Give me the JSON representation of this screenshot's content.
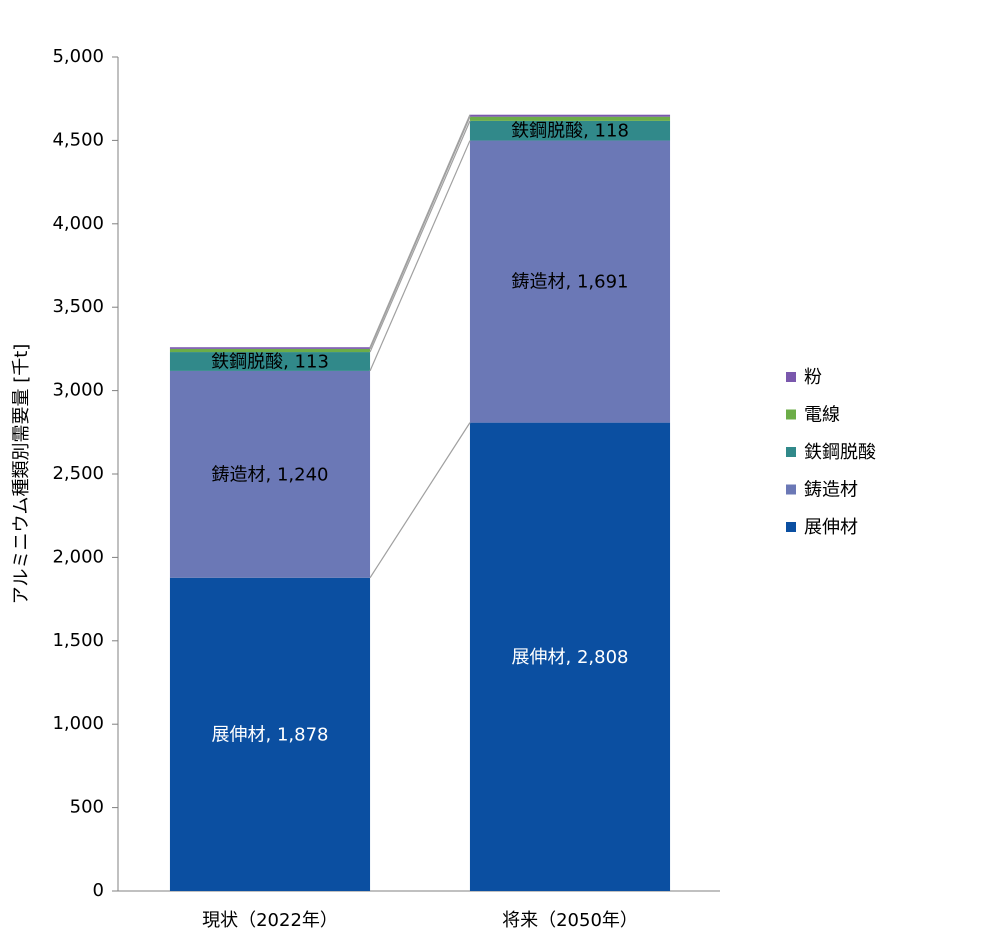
{
  "chart_data": {
    "type": "stacked_bar",
    "y_label": "アルミニウム種類別需要量 [千t]",
    "categories": [
      "現状（2022年）",
      "将来（2050年）"
    ],
    "series": [
      {
        "name": "展伸材",
        "color": "#0b4fa1",
        "label_color": "#ffffff",
        "values": [
          1878,
          2808
        ],
        "value_labels": [
          "展伸材, 1,878",
          "展伸材, 2,808"
        ]
      },
      {
        "name": "鋳造材",
        "color": "#6b78b6",
        "label_color": "#000000",
        "values": [
          1240,
          1691
        ],
        "value_labels": [
          "鋳造材, 1,240",
          "鋳造材, 1,691"
        ]
      },
      {
        "name": "鉄鋼脱酸",
        "color": "#31898a",
        "label_color": "#000000",
        "values": [
          113,
          118
        ],
        "value_labels": [
          "鉄鋼脱酸, 113",
          "鉄鋼脱酸, 118"
        ]
      },
      {
        "name": "電線",
        "color": "#6cad48",
        "values": [
          19,
          25
        ]
      },
      {
        "name": "粉",
        "color": "#7a58ad",
        "values": [
          10,
          12
        ]
      }
    ],
    "ylim": [
      0,
      5000
    ],
    "yticks": [
      0,
      500,
      {
        "value": 1000,
        "label": "1,000"
      },
      {
        "value": 1500,
        "label": "1,500"
      },
      {
        "value": 2000,
        "label": "2,000"
      },
      {
        "value": 2500,
        "label": "2,500"
      },
      {
        "value": 3000,
        "label": "3,000"
      },
      {
        "value": 3500,
        "label": "3,500"
      },
      {
        "value": 4000,
        "label": "4,000"
      },
      {
        "value": 4500,
        "label": "4,500"
      },
      {
        "value": 5000,
        "label": "5,000"
      }
    ],
    "grid": false,
    "connectors": true,
    "legend": "right"
  }
}
